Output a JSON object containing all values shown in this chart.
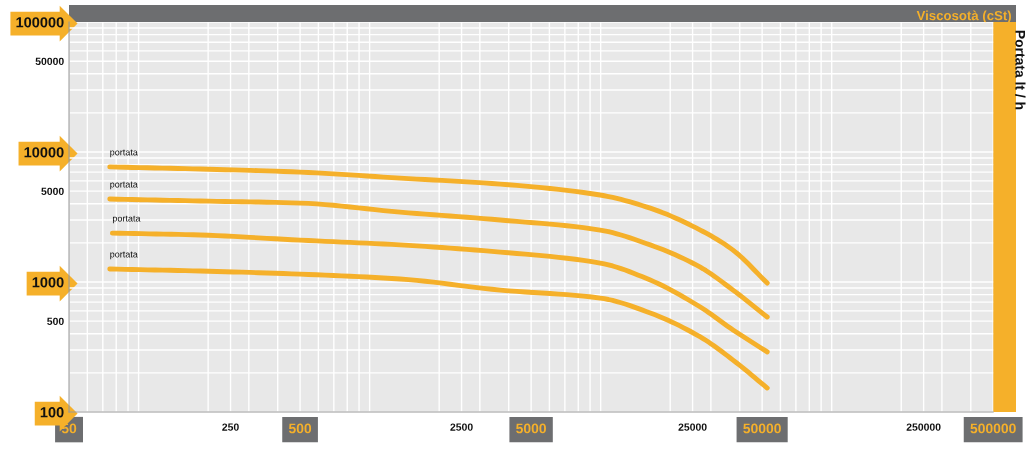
{
  "chart_data": {
    "type": "line",
    "xlabel": "Viscosotà (cSt)",
    "ylabel": "Portata lt / h",
    "log": "xy",
    "grid": true,
    "marker": "none",
    "line_style": "solid",
    "xlim": [
      50,
      500000
    ],
    "xticks": [
      50,
      250,
      500,
      2500,
      5000,
      25000,
      50000,
      250000,
      500000
    ],
    "ylim": [
      100,
      100000
    ],
    "yticks": [
      100,
      500,
      1000,
      5000,
      10000,
      50000,
      100000
    ],
    "series": [
      {
        "name": "portata",
        "color": "#f5b02a",
        "x": [
          75,
          185,
          500,
          1355,
          3675,
          9950,
          16400,
          27000,
          37400,
          52600
        ],
        "values": [
          7680,
          7400,
          7010,
          6300,
          5670,
          4670,
          3700,
          2510,
          1760,
          982
        ]
      },
      {
        "name": "portata",
        "color": "#f5b02a",
        "x": [
          75,
          185,
          500,
          1355,
          3675,
          9950,
          16400,
          27000,
          37400,
          52600
        ],
        "values": [
          4350,
          4200,
          4050,
          3450,
          3000,
          2510,
          1930,
          1300,
          867,
          538
        ]
      },
      {
        "name": "portata",
        "color": "#f5b02a",
        "x": [
          77,
          185,
          500,
          1355,
          3675,
          9950,
          16400,
          27000,
          37400,
          52600
        ],
        "values": [
          2380,
          2300,
          2100,
          1930,
          1700,
          1400,
          1035,
          642,
          428,
          290
        ]
      },
      {
        "name": "portata",
        "color": "#f5b02a",
        "x": [
          75,
          185,
          500,
          1355,
          3675,
          9950,
          16400,
          27000,
          37400,
          52600
        ],
        "values": [
          1260,
          1215,
          1150,
          1055,
          867,
          753,
          578,
          378,
          251,
          153
        ]
      }
    ]
  }
}
